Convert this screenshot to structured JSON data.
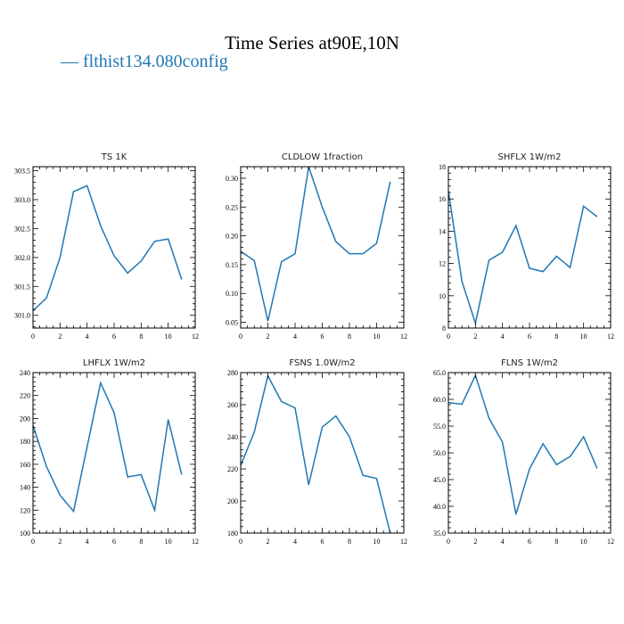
{
  "figure": {
    "title": "Time Series at90E,10N",
    "legend_label": "— flthist134.080config",
    "series_color": "#1f77b4"
  },
  "chart_data": [
    {
      "type": "line",
      "title": "TS   1K",
      "x": [
        0,
        1,
        2,
        3,
        4,
        5,
        6,
        7,
        8,
        9,
        10,
        11
      ],
      "values": [
        301.08,
        301.3,
        302.0,
        303.14,
        303.24,
        302.55,
        302.03,
        301.73,
        301.94,
        302.28,
        302.32,
        301.62
      ],
      "xlim": [
        0,
        12
      ],
      "ylim": [
        300.78,
        303.57
      ],
      "xticks": [
        0,
        2,
        4,
        6,
        8,
        10,
        12
      ],
      "yticks": [
        301.0,
        301.5,
        302.0,
        302.5,
        303.0,
        303.5
      ],
      "ytick_labels": [
        "301.0",
        "301.5",
        "302.0",
        "302.5",
        "303.0",
        "303.5"
      ]
    },
    {
      "type": "line",
      "title": "CLDLOW   1fraction",
      "x": [
        0,
        1,
        2,
        3,
        4,
        5,
        6,
        7,
        8,
        9,
        10,
        11
      ],
      "values": [
        0.173,
        0.157,
        0.052,
        0.155,
        0.169,
        0.32,
        0.25,
        0.19,
        0.169,
        0.169,
        0.187,
        0.294
      ],
      "xlim": [
        0,
        12
      ],
      "ylim": [
        0.04,
        0.32
      ],
      "xticks": [
        0,
        2,
        4,
        6,
        8,
        10,
        12
      ],
      "yticks": [
        0.05,
        0.1,
        0.15,
        0.2,
        0.25,
        0.3
      ],
      "ytick_labels": [
        "0.05",
        "0.10",
        "0.15",
        "0.20",
        "0.25",
        "0.30"
      ]
    },
    {
      "type": "line",
      "title": "SHFLX   1W/m2",
      "x": [
        0,
        1,
        2,
        3,
        4,
        5,
        6,
        7,
        8,
        9,
        10,
        11
      ],
      "values": [
        16.5,
        10.9,
        8.3,
        12.2,
        12.7,
        14.35,
        11.7,
        11.5,
        12.45,
        11.75,
        15.55,
        14.9
      ],
      "xlim": [
        0,
        12
      ],
      "ylim": [
        8,
        18
      ],
      "xticks": [
        0,
        2,
        4,
        6,
        8,
        10,
        12
      ],
      "yticks": [
        8,
        10,
        12,
        14,
        16,
        18
      ],
      "ytick_labels": [
        "8",
        "10",
        "12",
        "14",
        "16",
        "18"
      ]
    },
    {
      "type": "line",
      "title": "LHFLX   1W/m2",
      "x": [
        0,
        1,
        2,
        3,
        4,
        5,
        6,
        7,
        8,
        9,
        10,
        11
      ],
      "values": [
        194,
        158,
        133,
        119,
        175,
        231,
        205,
        149,
        151,
        120,
        199,
        151
      ],
      "xlim": [
        0,
        12
      ],
      "ylim": [
        100,
        240
      ],
      "xticks": [
        0,
        2,
        4,
        6,
        8,
        10,
        12
      ],
      "yticks": [
        100,
        120,
        140,
        160,
        180,
        200,
        220,
        240
      ],
      "ytick_labels": [
        "100",
        "120",
        "140",
        "160",
        "180",
        "200",
        "220",
        "240"
      ]
    },
    {
      "type": "line",
      "title": "FSNS   1.0W/m2",
      "x": [
        0,
        1,
        2,
        3,
        4,
        5,
        6,
        7,
        8,
        9,
        10,
        11
      ],
      "values": [
        222,
        243,
        278,
        262,
        258,
        210,
        246,
        253,
        240,
        216,
        214,
        180
      ],
      "xlim": [
        0,
        12
      ],
      "ylim": [
        180,
        280
      ],
      "xticks": [
        0,
        2,
        4,
        6,
        8,
        10,
        12
      ],
      "yticks": [
        180,
        200,
        220,
        240,
        260,
        280
      ],
      "ytick_labels": [
        "180",
        "200",
        "220",
        "240",
        "260",
        "280"
      ]
    },
    {
      "type": "line",
      "title": "FLNS   1W/m2",
      "x": [
        0,
        1,
        2,
        3,
        4,
        5,
        6,
        7,
        8,
        9,
        10,
        11
      ],
      "values": [
        59.4,
        59.1,
        64.5,
        56.5,
        52.0,
        38.5,
        47.0,
        51.7,
        47.8,
        49.3,
        53.0,
        47.1
      ],
      "xlim": [
        0,
        12
      ],
      "ylim": [
        35,
        65
      ],
      "xticks": [
        0,
        2,
        4,
        6,
        8,
        10,
        12
      ],
      "yticks": [
        35,
        40,
        45,
        50,
        55,
        60,
        65
      ],
      "ytick_labels": [
        "35.0",
        "40.0",
        "45.0",
        "50.0",
        "55.0",
        "60.0",
        "65.0"
      ]
    }
  ]
}
